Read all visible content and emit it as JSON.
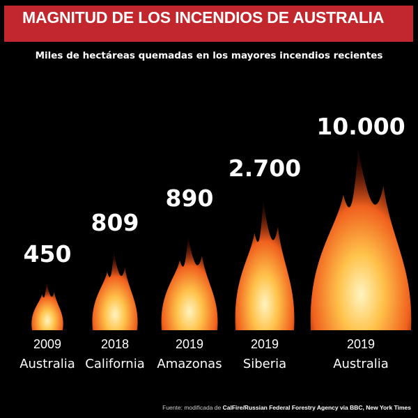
{
  "chart_data": {
    "type": "bar",
    "title": "MAGNITUD DE LOS INCENDIOS DE AUSTRALIA",
    "subtitle": "Miles de hectáreas quemadas en los mayores incendios recientes",
    "categories": [
      {
        "year": "2009",
        "place": "Australia"
      },
      {
        "year": "2018",
        "place": "California"
      },
      {
        "year": "2019",
        "place": "Amazonas"
      },
      {
        "year": "2019",
        "place": "Siberia"
      },
      {
        "year": "2019",
        "place": "Australia"
      }
    ],
    "values": [
      450,
      809,
      890,
      2700,
      10000
    ],
    "value_labels": [
      "450",
      "809",
      "890",
      "2.700",
      "10.000"
    ],
    "mark": "flame",
    "colors": {
      "title_bar": "#c1272d",
      "background": "#000000",
      "flame_outer": "#e2401a",
      "flame_inner": "#ffe9a0"
    }
  },
  "source": {
    "prefix": "Fuente: modificada de",
    "text": "CalFire/Russian Federal Forestry Agency via BBC, New York Times"
  }
}
